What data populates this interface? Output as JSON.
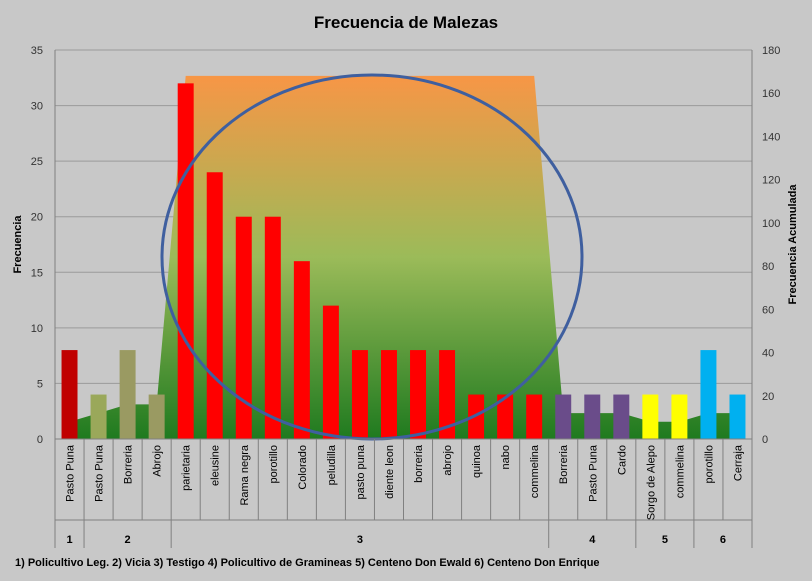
{
  "chart_data": {
    "type": "bar",
    "title": "Frecuencia de Malezas",
    "ylabel": "Frecuencia",
    "y2label": "Frecuencia Acumulada",
    "ylim": [
      0,
      35
    ],
    "yticks": [
      0,
      5,
      10,
      15,
      20,
      25,
      30,
      35
    ],
    "y2lim": [
      0,
      180
    ],
    "y2ticks": [
      0,
      20,
      40,
      60,
      80,
      100,
      120,
      140,
      160,
      180
    ],
    "grid": true,
    "categories": [
      "Pasto Puna",
      "Pasto Puna",
      "Borreria",
      "Abrojo",
      "parietaria",
      "eleusine",
      "Rama negra",
      "porotillo",
      "Colorado",
      "peludilla",
      "pasto puna",
      "diente leon",
      "borreria",
      "abrojo",
      "quinoa",
      "nabo",
      "commelina",
      "Borreria",
      "Pasto Puna",
      "Cardo",
      "Sorgo de Alepo",
      "commelina",
      "porotillo",
      "Cerraja"
    ],
    "values": [
      8,
      4,
      8,
      4,
      32,
      24,
      20,
      20,
      16,
      12,
      8,
      8,
      8,
      8,
      4,
      4,
      4,
      4,
      4,
      4,
      4,
      4,
      8,
      4
    ],
    "bar_colors": [
      "#c00000",
      "#9aa85a",
      "#9a9a62",
      "#9a9a62",
      "#ff0000",
      "#ff0000",
      "#ff0000",
      "#ff0000",
      "#ff0000",
      "#ff0000",
      "#ff0000",
      "#ff0000",
      "#ff0000",
      "#ff0000",
      "#ff0000",
      "#ff0000",
      "#ff0000",
      "#6a4c8a",
      "#6a4c8a",
      "#6a4c8a",
      "#ffff00",
      "#ffff00",
      "#00b0f0",
      "#00b0f0"
    ],
    "groups": [
      {
        "label": "1",
        "start": 0,
        "end": 0
      },
      {
        "label": "2",
        "start": 1,
        "end": 3
      },
      {
        "label": "3",
        "start": 4,
        "end": 16
      },
      {
        "label": "4",
        "start": 17,
        "end": 19
      },
      {
        "label": "5",
        "start": 20,
        "end": 21
      },
      {
        "label": "6",
        "start": 22,
        "end": 23
      }
    ],
    "cumulative": [
      8,
      12,
      16,
      16,
      168,
      168,
      168,
      168,
      168,
      168,
      168,
      168,
      168,
      168,
      168,
      168,
      168,
      12,
      12,
      12,
      8,
      8,
      12,
      12
    ],
    "footnote": "1) Policultivo Leg.  2) Vicia  3) Testigo  4) Policultivo de Gramineas  5) Centeno Don Ewald  6) Centeno Don Enrique"
  }
}
